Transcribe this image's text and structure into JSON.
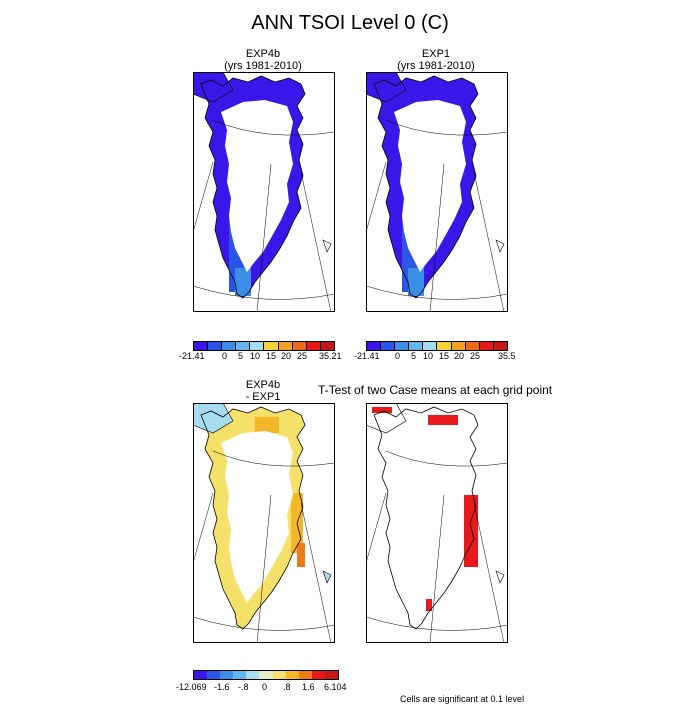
{
  "title": "ANN TSOI Level 0 (C)",
  "panels": {
    "top_left": {
      "title_line1": "EXP4b",
      "title_line2": "(yrs 1981-2010)"
    },
    "top_right": {
      "title_line1": "EXP1",
      "title_line2": "(yrs 1981-2010)"
    },
    "bottom_left": {
      "title_line1": "EXP4b",
      "title_line2": "- EXP1"
    },
    "bottom_right": {
      "title": "T-Test of two Case means at each grid point"
    }
  },
  "colorbar_top": {
    "colors": [
      "#3a17e8",
      "#2a55e6",
      "#3a8ee8",
      "#62b8ec",
      "#a7dcf0",
      "#f5d337",
      "#f2a21e",
      "#ef6a12",
      "#e8191a",
      "#c41818"
    ],
    "left_labels": [
      "-21.41",
      "0",
      "5",
      "10",
      "15",
      "20",
      "25",
      "35.21"
    ],
    "right_labels": [
      "-21.41",
      "0",
      "5",
      "10",
      "15",
      "20",
      "25",
      "35.5"
    ]
  },
  "colorbar_bottom": {
    "colors": [
      "#3a17e8",
      "#2a55e6",
      "#3a8ee8",
      "#62b8ec",
      "#a7dcf0",
      "#e6f0c8",
      "#f5e16a",
      "#f5b72a",
      "#ef7a18",
      "#e8191a",
      "#c41818"
    ],
    "labels": [
      "-12.069",
      "-1.6",
      "-.8",
      "0",
      ".8",
      "1.6",
      "6.104"
    ]
  },
  "footnote": "Cells are significant at 0.1 level",
  "map_colors": {
    "cold": "#3a17e8",
    "mid": "#2a55e6",
    "warm": "#3a8ee8",
    "diff": "#f5e16a",
    "sig": "#e8191a"
  }
}
